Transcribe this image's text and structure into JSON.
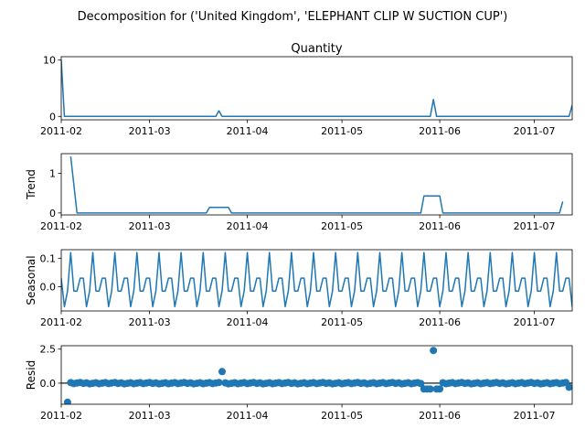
{
  "figure": {
    "suptitle": "Decomposition for ('United Kingdom', 'ELEPHANT CLIP W SUCTION CUP')"
  },
  "chart_data": [
    {
      "type": "line",
      "title": "Quantity",
      "ylabel": "",
      "x_start": "2011-02-01",
      "x_end": "2011-07-13",
      "xlim": [
        "2011-02-01",
        "2011-07-13"
      ],
      "ylim": [
        -0.6,
        10.6
      ],
      "yticks": [
        0,
        10
      ],
      "ytick_labels": [
        "0",
        "10"
      ],
      "xtick_labels": [
        "2011-02",
        "2011-03",
        "2011-04",
        "2011-05",
        "2011-06",
        "2011-07"
      ],
      "points": [
        [
          "2011-02-01",
          10
        ],
        [
          "2011-02-02",
          0
        ],
        [
          "2011-03-22",
          0
        ],
        [
          "2011-03-23",
          1
        ],
        [
          "2011-03-24",
          0
        ],
        [
          "2011-05-29",
          0
        ],
        [
          "2011-05-30",
          3
        ],
        [
          "2011-05-31",
          0
        ],
        [
          "2011-07-12",
          0
        ],
        [
          "2011-07-13",
          2
        ]
      ]
    },
    {
      "type": "line",
      "title": "",
      "ylabel": "Trend",
      "xlim": [
        "2011-02-01",
        "2011-07-13"
      ],
      "ylim": [
        -0.05,
        1.5
      ],
      "yticks": [
        0,
        1
      ],
      "ytick_labels": [
        "0",
        "1"
      ],
      "xtick_labels": [
        "2011-02",
        "2011-03",
        "2011-04",
        "2011-05",
        "2011-06",
        "2011-07"
      ],
      "points": [
        [
          "2011-02-04",
          1.43
        ],
        [
          "2011-02-06",
          0.0
        ],
        [
          "2011-03-19",
          0.0
        ],
        [
          "2011-03-20",
          0.14
        ],
        [
          "2011-03-26",
          0.14
        ],
        [
          "2011-03-27",
          0.0
        ],
        [
          "2011-05-26",
          0.0
        ],
        [
          "2011-05-27",
          0.43
        ],
        [
          "2011-06-01",
          0.43
        ],
        [
          "2011-06-02",
          0.0
        ],
        [
          "2011-07-09",
          0.0
        ],
        [
          "2011-07-10",
          0.29
        ]
      ]
    },
    {
      "type": "line",
      "title": "",
      "ylabel": "Seasonal",
      "xlim": [
        "2011-02-01",
        "2011-07-13"
      ],
      "ylim": [
        -0.085,
        0.13
      ],
      "yticks": [
        0.0,
        0.1
      ],
      "ytick_labels": [
        "0.0",
        "0.1"
      ],
      "xtick_labels": [
        "2011-02",
        "2011-03",
        "2011-04",
        "2011-05",
        "2011-06",
        "2011-07"
      ],
      "period_days": 7,
      "pattern": [
        0.03,
        -0.07,
        -0.015,
        0.12,
        -0.015,
        -0.015,
        0.03
      ],
      "first_date": "2011-02-01"
    },
    {
      "type": "scatter",
      "title": "",
      "ylabel": "Resid",
      "xlim": [
        "2011-02-01",
        "2011-07-13"
      ],
      "ylim": [
        -1.55,
        2.75
      ],
      "yticks": [
        0.0,
        2.5
      ],
      "ytick_labels": [
        "0.0",
        "2.5"
      ],
      "xtick_labels": [
        "2011-02",
        "2011-03",
        "2011-04",
        "2011-05",
        "2011-06",
        "2011-07"
      ],
      "zero_line": true,
      "outliers": [
        [
          "2011-02-03",
          -1.4
        ],
        [
          "2011-03-24",
          0.85
        ],
        [
          "2011-05-30",
          2.4
        ]
      ],
      "baseline_start": "2011-02-04",
      "baseline_end": "2011-07-12",
      "baseline_value": 0.0,
      "dip_start": "2011-05-27",
      "dip_end": "2011-06-01",
      "dip_value": -0.43,
      "dip2_date": "2011-07-12",
      "dip2_value": -0.3
    }
  ]
}
